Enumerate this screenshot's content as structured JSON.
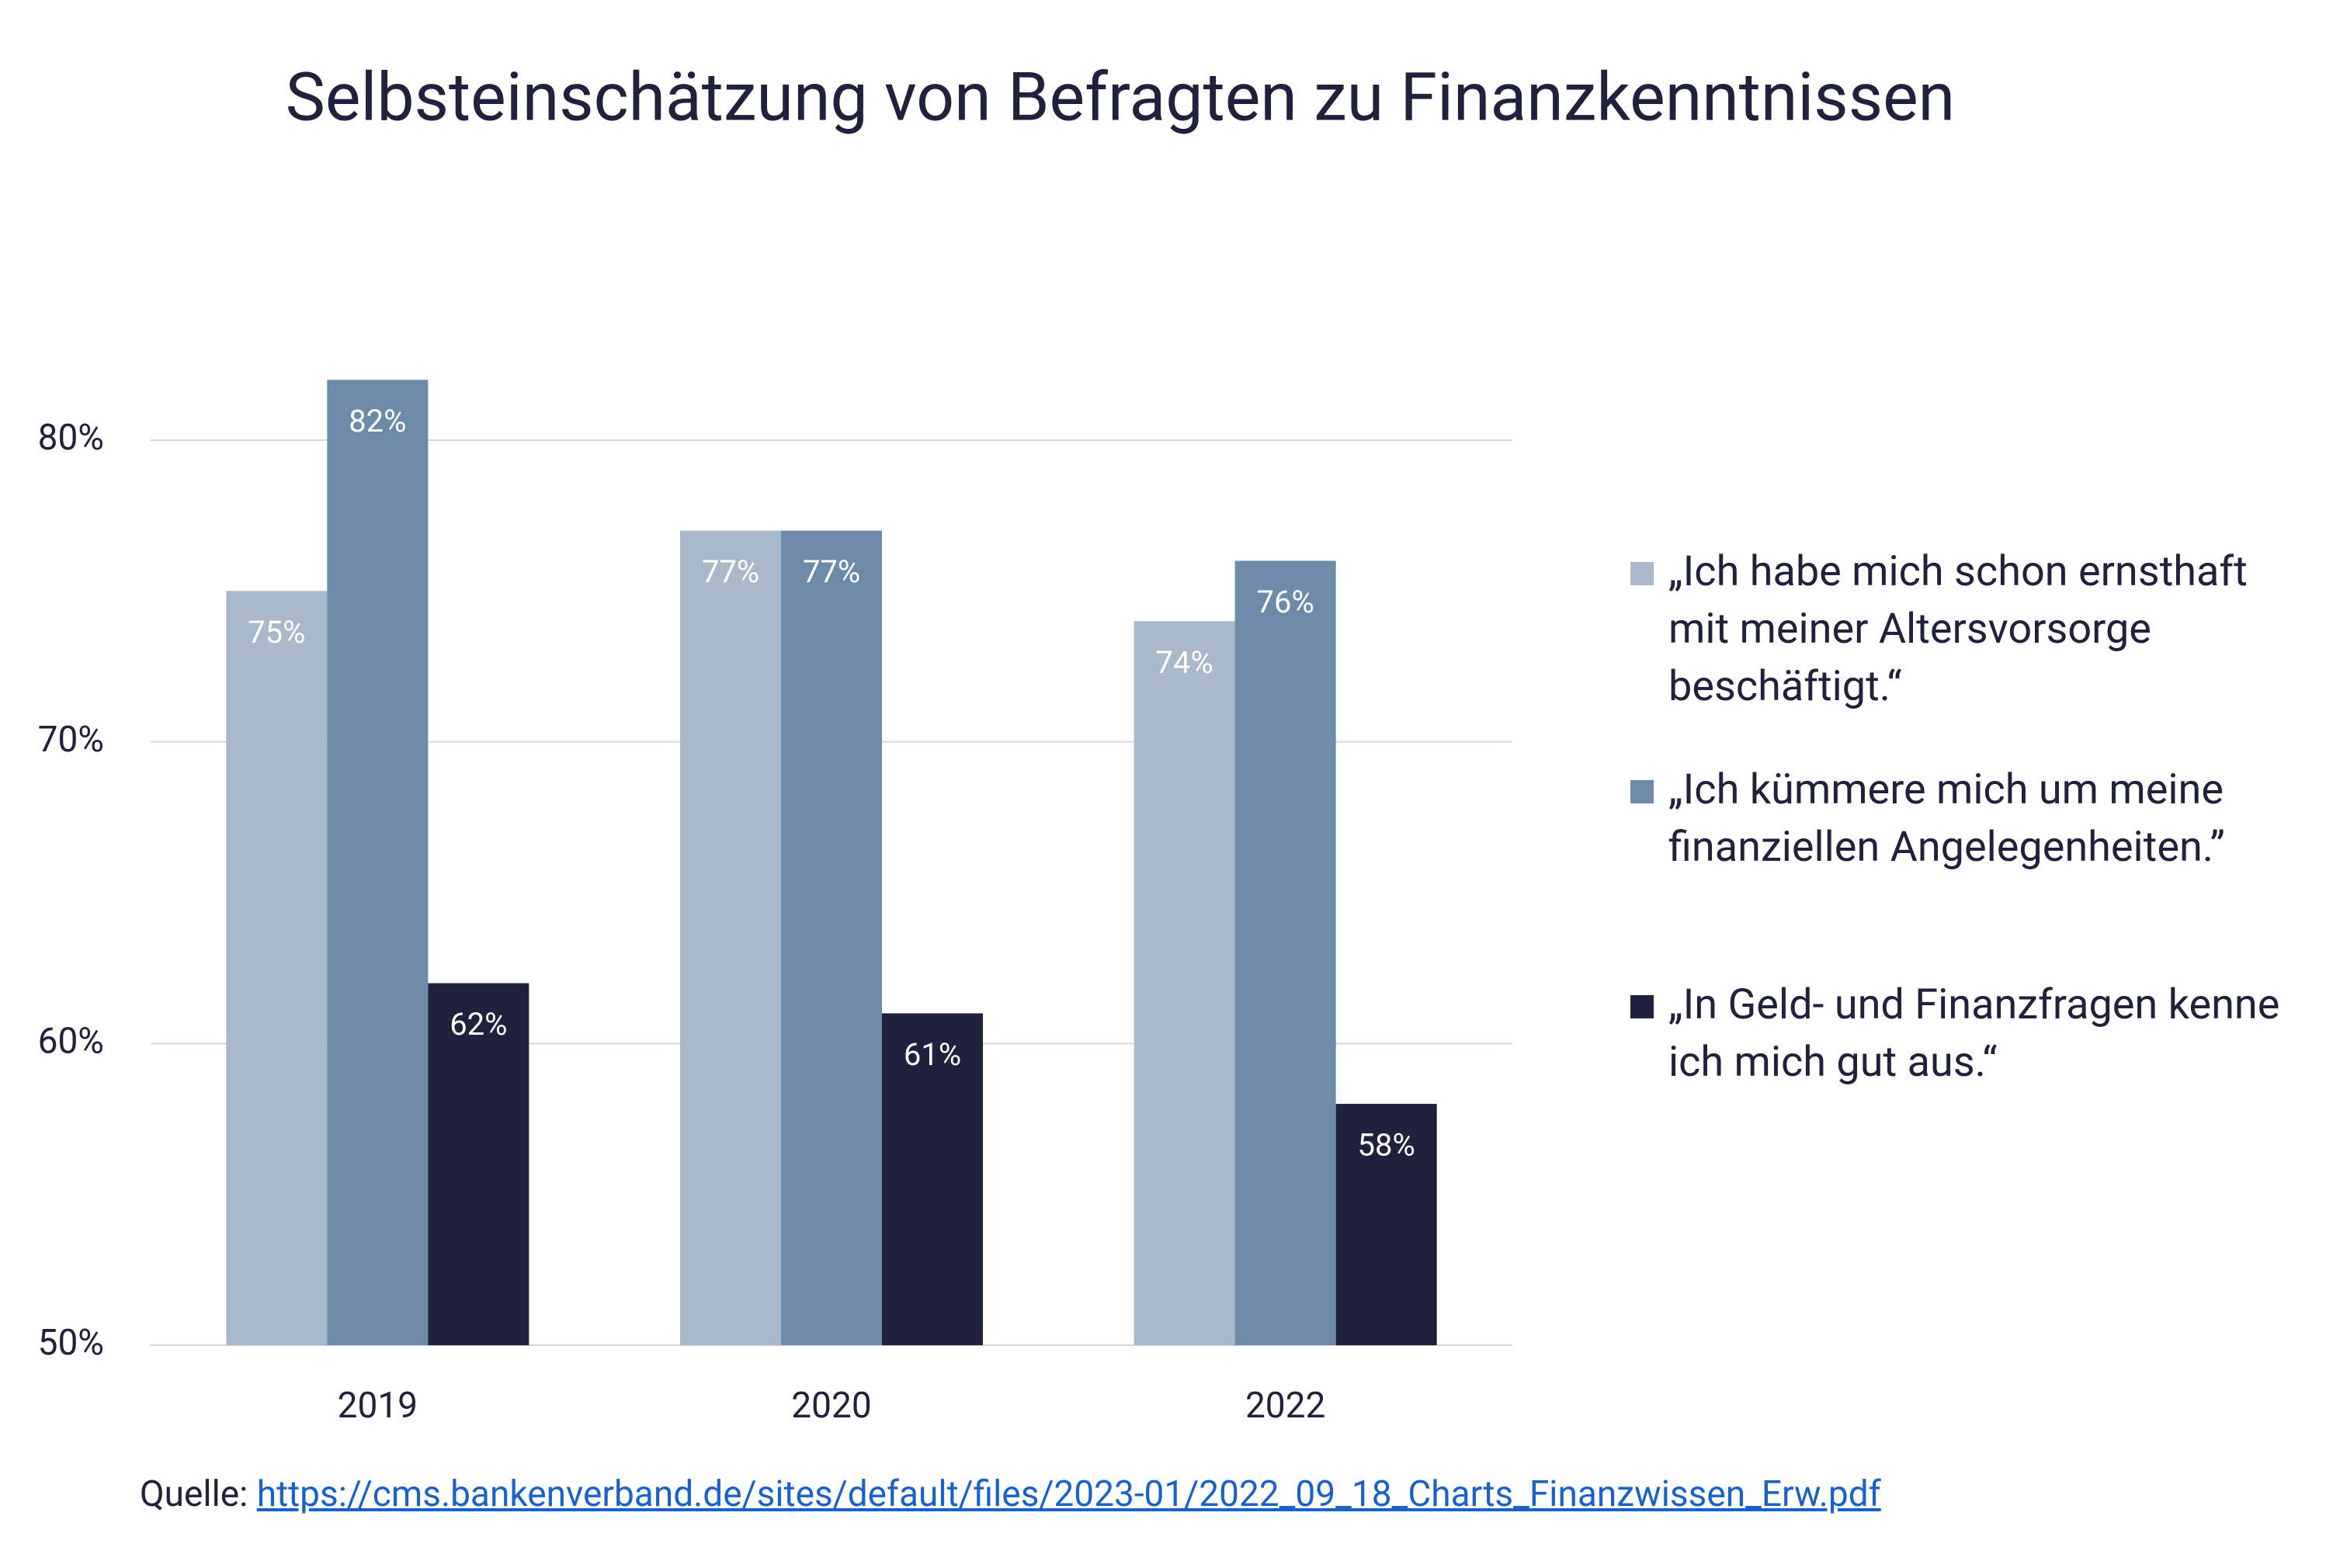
{
  "chart_data": {
    "type": "bar",
    "title": "Selbsteinschätzung von Befragten zu Finanzkenntnissen",
    "categories": [
      "2019",
      "2020",
      "2022"
    ],
    "series": [
      {
        "name": "„Ich habe mich schon ernsthaft mit meiner Altersvorsorge beschäftigt.“",
        "color": "#a9b8ca",
        "values": [
          75,
          77,
          74
        ],
        "value_labels": [
          "75%",
          "77%",
          "74%"
        ]
      },
      {
        "name": "„Ich kümmere mich um meine finanziellen Angelegenheiten.”",
        "color": "#6d8ba8",
        "values": [
          82,
          77,
          76
        ],
        "value_labels": [
          "82%",
          "77%",
          "76%"
        ]
      },
      {
        "name": "„In Geld- und Finanzfragen kenne ich mich gut aus.“",
        "color": "#20213c",
        "values": [
          62,
          61,
          58
        ],
        "value_labels": [
          "62%",
          "61%",
          "58%"
        ]
      }
    ],
    "ylim": [
      50,
      80
    ],
    "yticks": [
      {
        "value": 50,
        "label": "50%"
      },
      {
        "value": 60,
        "label": "60%"
      },
      {
        "value": 70,
        "label": "70%"
      },
      {
        "value": 80,
        "label": "80%"
      }
    ],
    "grid": true,
    "legend": "right",
    "source_label": "Quelle:",
    "source_url": "https://cms.bankenverband.de/sites/default/files/2023-01/2022_09_18_Charts_Finanzwissen_Erw.pdf"
  }
}
